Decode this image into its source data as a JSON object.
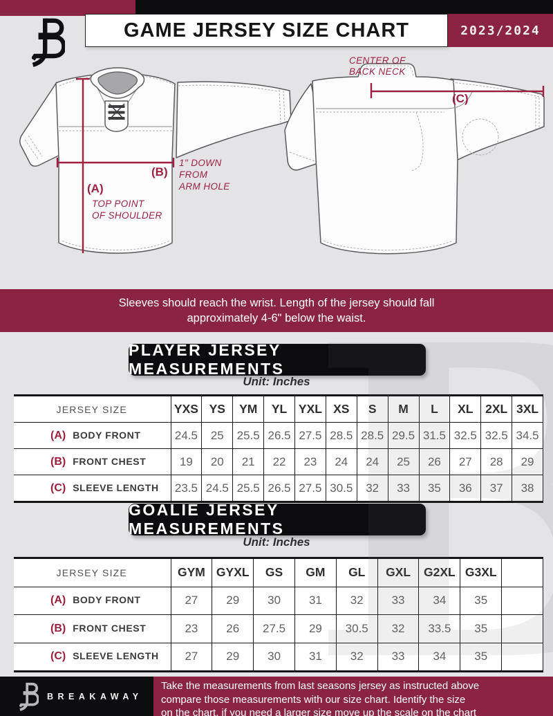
{
  "header": {
    "logo": "breakaway-logo",
    "title": "GAME JERSEY SIZE CHART",
    "season": "2023/2024"
  },
  "diagram": {
    "front": {
      "point_a": "(A)",
      "point_a_note": [
        "TOP POINT",
        "OF SHOULDER"
      ],
      "point_b": "(B)",
      "point_b_note": [
        "1\" DOWN",
        "FROM",
        "ARM HOLE"
      ]
    },
    "back": {
      "point_c": "(C)",
      "point_c_note": [
        "CENTER OF",
        "BACK NECK"
      ]
    }
  },
  "banner": {
    "line1": "Sleeves should reach the wrist. Length of the jersey should fall",
    "line2": "approximately 4-6\" below the waist."
  },
  "player_table": {
    "title": "PLAYER JERSEY MEASUREMENTS",
    "unit": "Unit: Inches",
    "header_label": "JERSEY SIZE",
    "sizes": [
      "YXS",
      "YS",
      "YM",
      "YL",
      "YXL",
      "XS",
      "S",
      "M",
      "L",
      "XL",
      "2XL",
      "3XL"
    ],
    "rows": [
      {
        "key": "(A)",
        "label": "BODY FRONT",
        "values": [
          "24.5",
          "25",
          "25.5",
          "26.5",
          "27.5",
          "28.5",
          "28.5",
          "29.5",
          "31.5",
          "32.5",
          "32.5",
          "34.5"
        ]
      },
      {
        "key": "(B)",
        "label": "FRONT CHEST",
        "values": [
          "19",
          "20",
          "21",
          "22",
          "23",
          "24",
          "24",
          "25",
          "26",
          "27",
          "28",
          "29"
        ]
      },
      {
        "key": "(C)",
        "label": "SLEEVE LENGTH",
        "values": [
          "23.5",
          "24.5",
          "25.5",
          "26.5",
          "27.5",
          "30.5",
          "32",
          "33",
          "35",
          "36",
          "37",
          "38"
        ]
      }
    ]
  },
  "goalie_table": {
    "title": "GOALIE JERSEY MEASUREMENTS",
    "unit": "Unit: Inches",
    "header_label": "JERSEY SIZE",
    "sizes": [
      "GYM",
      "GYXL",
      "GS",
      "GM",
      "GL",
      "GXL",
      "G2XL",
      "G3XL",
      ""
    ],
    "rows": [
      {
        "key": "(A)",
        "label": "BODY FRONT",
        "values": [
          "27",
          "29",
          "30",
          "31",
          "32",
          "33",
          "34",
          "35",
          ""
        ]
      },
      {
        "key": "(B)",
        "label": "FRONT CHEST",
        "values": [
          "23",
          "26",
          "27.5",
          "29",
          "30.5",
          "32",
          "33.5",
          "35",
          ""
        ]
      },
      {
        "key": "(C)",
        "label": "SLEEVE LENGTH",
        "values": [
          "27",
          "29",
          "30",
          "31",
          "32",
          "33",
          "34",
          "35",
          ""
        ]
      }
    ]
  },
  "watermark": "B",
  "footer": {
    "logo": "breakaway-logo",
    "brand": "BREAKAWAY",
    "note_lines": [
      "Take the measurements from last seasons jersey as instructed above",
      "compare those measurements  with our size chart. Identify the size",
      "on the chart, if you need a larger size move up the scale on the chart"
    ]
  },
  "colors": {
    "maroon": "#8b2342",
    "black": "#0d0d0f",
    "accent_red": "#9d2041"
  }
}
